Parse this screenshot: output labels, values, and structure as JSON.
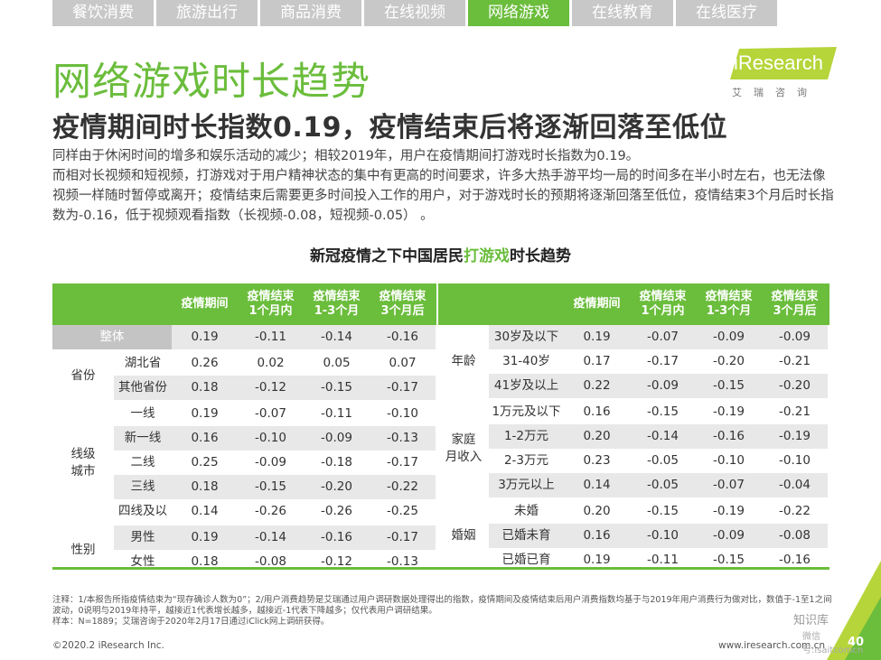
{
  "tabs": [
    "餐饮消费",
    "旅游出行",
    "商品消费",
    "在线视频",
    "网络游戏",
    "在线教育",
    "在线医疗"
  ],
  "active_tab": 4,
  "logo": {
    "text": "iResearch",
    "sub": "艾瑞咨询"
  },
  "title": "网络游戏时长趋势",
  "subtitle": "疫情期间时长指数0.19，疫情结束后将逐渐回落至低位",
  "description": [
    "同样由于休闲时间的增多和娱乐活动的减少；相较2019年，用户在疫情期间打游戏时长指数为0.19。",
    "而相对长视频和短视频，打游戏对于用户精神状态的集中有更高的时间要求，许多大热手游平均一局的时间多在半小时左右，也无法像视频一样随时暂停或离开；疫情结束后需要更多时间投入工作的用户，对于游戏时长的预期将逐渐回落至低位，疫情结束3个月后时长指数为-0.16，低于视频观看指数（长视频-0.08，短视频-0.05） 。"
  ],
  "table_title": {
    "pre": "新冠疫情之下中国居民",
    "hl": "打游戏",
    "post": "时长趋势"
  },
  "columns": [
    "疫情期间",
    "疫情结束\n1个月内",
    "疫情结束\n1-3个月",
    "疫情结束\n3个月后"
  ],
  "left": {
    "overall": {
      "label": "整体",
      "values": [
        "0.19",
        "-0.11",
        "-0.14",
        "-0.16"
      ]
    },
    "groups": [
      {
        "name": "省份",
        "rows": [
          {
            "label": "湖北省",
            "values": [
              "0.26",
              "0.02",
              "0.05",
              "0.07"
            ]
          },
          {
            "label": "其他省份",
            "values": [
              "0.18",
              "-0.12",
              "-0.15",
              "-0.17"
            ]
          }
        ]
      },
      {
        "name": "线级\n城市",
        "rows": [
          {
            "label": "一线",
            "values": [
              "0.19",
              "-0.07",
              "-0.11",
              "-0.10"
            ]
          },
          {
            "label": "新一线",
            "values": [
              "0.16",
              "-0.10",
              "-0.09",
              "-0.13"
            ]
          },
          {
            "label": "二线",
            "values": [
              "0.25",
              "-0.09",
              "-0.18",
              "-0.17"
            ]
          },
          {
            "label": "三线",
            "values": [
              "0.18",
              "-0.15",
              "-0.20",
              "-0.22"
            ]
          },
          {
            "label": "四线及以下",
            "values": [
              "0.14",
              "-0.26",
              "-0.26",
              "-0.25"
            ]
          }
        ]
      },
      {
        "name": "性别",
        "rows": [
          {
            "label": "男性",
            "values": [
              "0.19",
              "-0.14",
              "-0.16",
              "-0.17"
            ]
          },
          {
            "label": "女性",
            "values": [
              "0.18",
              "-0.08",
              "-0.12",
              "-0.13"
            ]
          }
        ]
      }
    ]
  },
  "right": {
    "groups": [
      {
        "name": "年龄",
        "rows": [
          {
            "label": "30岁及以下",
            "values": [
              "0.19",
              "-0.07",
              "-0.09",
              "-0.09"
            ]
          },
          {
            "label": "31-40岁",
            "values": [
              "0.17",
              "-0.17",
              "-0.20",
              "-0.21"
            ]
          },
          {
            "label": "41岁及以上",
            "values": [
              "0.22",
              "-0.09",
              "-0.15",
              "-0.20"
            ]
          }
        ]
      },
      {
        "name": "家庭\n月收入",
        "rows": [
          {
            "label": "1万元及以下",
            "values": [
              "0.16",
              "-0.15",
              "-0.19",
              "-0.21"
            ]
          },
          {
            "label": "1-2万元",
            "values": [
              "0.20",
              "-0.14",
              "-0.16",
              "-0.19"
            ]
          },
          {
            "label": "2-3万元",
            "values": [
              "0.23",
              "-0.05",
              "-0.10",
              "-0.10"
            ]
          },
          {
            "label": "3万元以上",
            "values": [
              "0.14",
              "-0.05",
              "-0.07",
              "-0.04"
            ]
          }
        ]
      },
      {
        "name": "婚姻",
        "rows": [
          {
            "label": "未婚",
            "values": [
              "0.20",
              "-0.15",
              "-0.19",
              "-0.22"
            ]
          },
          {
            "label": "已婚未育",
            "values": [
              "0.16",
              "-0.10",
              "-0.09",
              "-0.08"
            ]
          },
          {
            "label": "已婚已育",
            "values": [
              "0.19",
              "-0.11",
              "-0.15",
              "-0.16"
            ]
          }
        ]
      }
    ]
  },
  "notes": [
    "注释：1/本报告所指疫情结束为“现存确诊人数为0”；2/用户消费趋势是艾瑞通过用户调研数据处理得出的指数，疫情期间及疫情结束后用户消费指数均基于与2019年用户消费行为做对比，数值于-1至1之间波动，0说明与2019年持平，越接近1代表增长越多，越接近-1代表下降越多；仅代表用户调研结果。",
    "样本：N=1889；艾瑞咨询于2020年2月17日通过iClick网上调研获得。"
  ],
  "footer_left": "©2020.2 iResearch Inc.",
  "footer_right": "www.iresearch.com.cn",
  "page_number": "40",
  "watermark": "知识库",
  "watermark_sub": "微信号:isaitcomcn",
  "colors": {
    "green": "#6bbd3c",
    "tab_gray": "#c8c8c8",
    "row_gray": "#e8e8e8"
  }
}
